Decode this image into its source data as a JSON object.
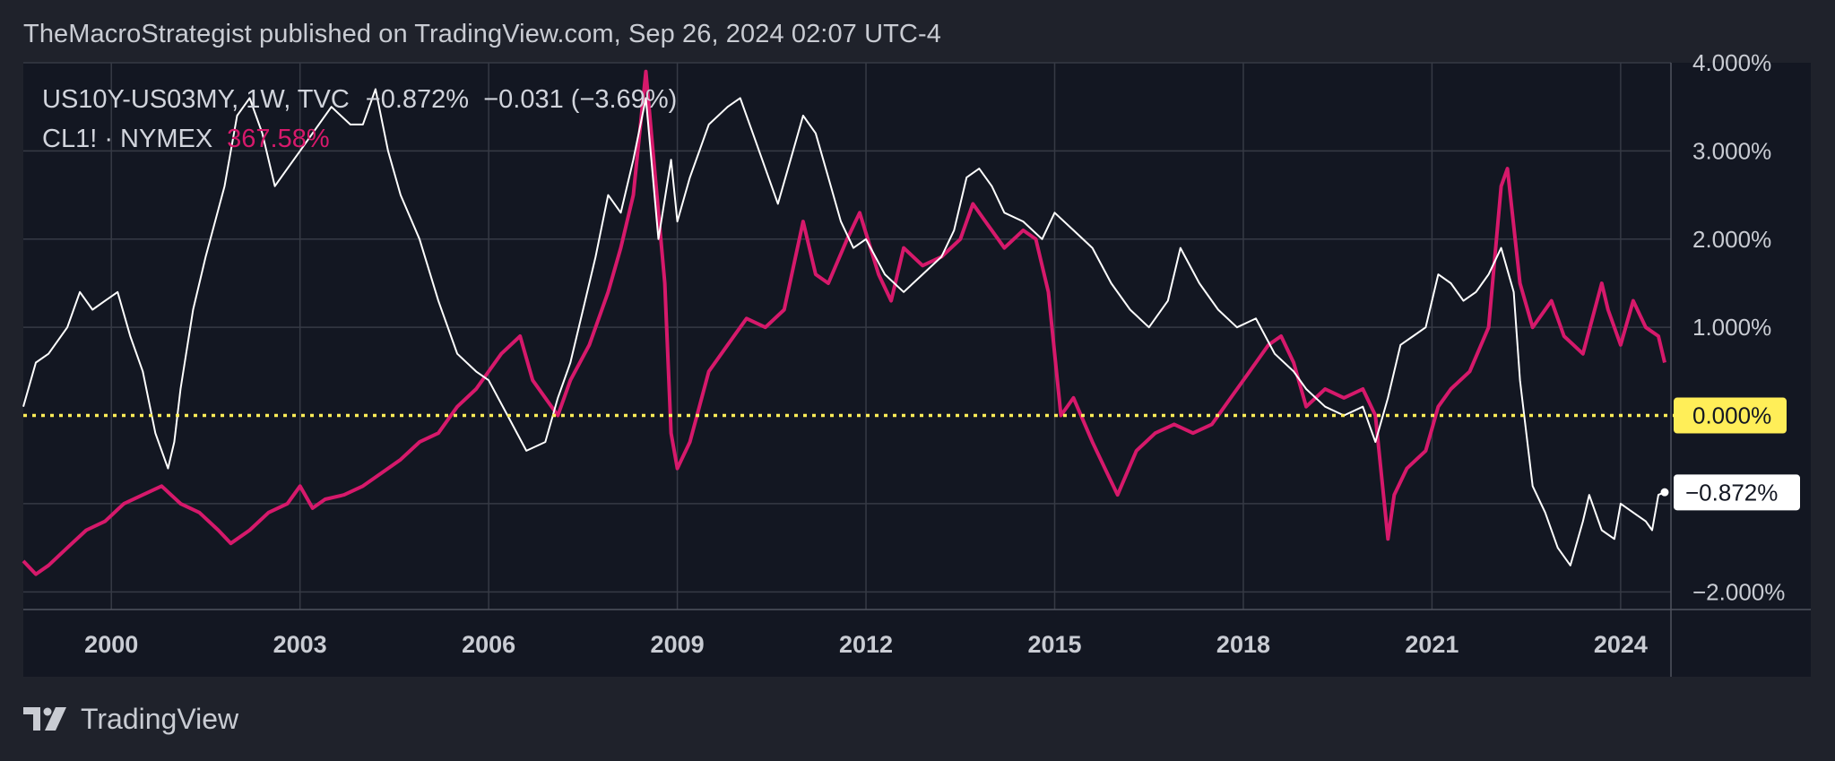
{
  "header": {
    "text": "TheMacroStrategist published on TradingView.com, Sep 26, 2024 02:07 UTC-4"
  },
  "legend": {
    "series1_label": "US10Y-US03MY, 1W, TVC",
    "series1_value": "−0.872%",
    "series1_change": "−0.031 (−3.69%)",
    "series2_label": "CL1! · NYMEX",
    "series2_value": "367.58%"
  },
  "footer": {
    "brand": "TradingView",
    "logo_icon": "tradingview-logo-icon"
  },
  "colors": {
    "background": "#1f222b",
    "plot_background": "#131722",
    "grid": "#363a45",
    "spread_line": "#ffffff",
    "oil_line": "#d6196b",
    "zero_line": "#ffee58"
  },
  "chart_data": {
    "type": "line",
    "x_range": [
      1998.6,
      2024.8
    ],
    "ylim": [
      -2.2,
      4.0
    ],
    "y_axis_position": "right",
    "y_ticks": [
      "4.000%",
      "3.000%",
      "2.000%",
      "1.000%",
      "0.000%",
      "−2.000%"
    ],
    "y_tick_values": [
      4,
      3,
      2,
      1,
      0,
      -2
    ],
    "x_ticks": [
      "2000",
      "2003",
      "2006",
      "2009",
      "2012",
      "2015",
      "2018",
      "2021",
      "2024"
    ],
    "x_tick_values": [
      2000,
      2003,
      2006,
      2009,
      2012,
      2015,
      2018,
      2021,
      2024
    ],
    "grid": true,
    "zero_line": {
      "value": 0,
      "label": "0.000%",
      "style": "dotted"
    },
    "last_value_label": "−0.872%",
    "last_value": -0.872,
    "series": [
      {
        "name": "US10Y-US03MY",
        "x": [
          1998.6,
          1998.8,
          1999.0,
          1999.3,
          1999.5,
          1999.7,
          1999.9,
          2000.1,
          2000.3,
          2000.5,
          2000.7,
          2000.9,
          2001.0,
          2001.1,
          2001.3,
          2001.5,
          2001.8,
          2002.0,
          2002.2,
          2002.4,
          2002.6,
          2002.8,
          2003.0,
          2003.2,
          2003.5,
          2003.8,
          2004.0,
          2004.2,
          2004.4,
          2004.6,
          2004.9,
          2005.2,
          2005.5,
          2005.8,
          2006.0,
          2006.3,
          2006.6,
          2006.9,
          2007.1,
          2007.3,
          2007.5,
          2007.7,
          2007.9,
          2008.1,
          2008.3,
          2008.5,
          2008.7,
          2008.9,
          2009.0,
          2009.2,
          2009.5,
          2009.8,
          2010.0,
          2010.2,
          2010.4,
          2010.6,
          2010.8,
          2011.0,
          2011.2,
          2011.4,
          2011.6,
          2011.8,
          2012.0,
          2012.3,
          2012.6,
          2012.9,
          2013.2,
          2013.4,
          2013.6,
          2013.8,
          2014.0,
          2014.2,
          2014.5,
          2014.8,
          2015.0,
          2015.3,
          2015.6,
          2015.9,
          2016.2,
          2016.5,
          2016.8,
          2017.0,
          2017.3,
          2017.6,
          2017.9,
          2018.2,
          2018.5,
          2018.8,
          2019.0,
          2019.3,
          2019.6,
          2019.9,
          2020.1,
          2020.3,
          2020.5,
          2020.7,
          2020.9,
          2021.1,
          2021.3,
          2021.5,
          2021.7,
          2021.9,
          2022.1,
          2022.3,
          2022.4,
          2022.6,
          2022.8,
          2023.0,
          2023.2,
          2023.4,
          2023.5,
          2023.7,
          2023.9,
          2024.0,
          2024.2,
          2024.4,
          2024.5,
          2024.6,
          2024.7
        ],
        "values": [
          0.1,
          0.6,
          0.7,
          1.0,
          1.4,
          1.2,
          1.3,
          1.4,
          0.9,
          0.5,
          -0.2,
          -0.6,
          -0.3,
          0.3,
          1.2,
          1.8,
          2.6,
          3.4,
          3.6,
          3.2,
          2.6,
          2.8,
          3.0,
          3.2,
          3.5,
          3.3,
          3.3,
          3.7,
          3.0,
          2.5,
          2.0,
          1.3,
          0.7,
          0.5,
          0.4,
          0.0,
          -0.4,
          -0.3,
          0.2,
          0.6,
          1.2,
          1.8,
          2.5,
          2.3,
          2.9,
          3.6,
          2.0,
          2.9,
          2.2,
          2.7,
          3.3,
          3.5,
          3.6,
          3.2,
          2.8,
          2.4,
          2.9,
          3.4,
          3.2,
          2.7,
          2.2,
          1.9,
          2.0,
          1.6,
          1.4,
          1.6,
          1.8,
          2.1,
          2.7,
          2.8,
          2.6,
          2.3,
          2.2,
          2.0,
          2.3,
          2.1,
          1.9,
          1.5,
          1.2,
          1.0,
          1.3,
          1.9,
          1.5,
          1.2,
          1.0,
          1.1,
          0.7,
          0.5,
          0.3,
          0.1,
          0.0,
          0.1,
          -0.3,
          0.2,
          0.8,
          0.9,
          1.0,
          1.6,
          1.5,
          1.3,
          1.4,
          1.6,
          1.9,
          1.4,
          0.4,
          -0.8,
          -1.1,
          -1.5,
          -1.7,
          -1.2,
          -0.9,
          -1.3,
          -1.4,
          -1.0,
          -1.1,
          -1.2,
          -1.3,
          -0.9,
          -0.87
        ]
      },
      {
        "name": "CL1! · NYMEX",
        "x": [
          1998.6,
          1998.8,
          1999.0,
          1999.3,
          1999.6,
          1999.9,
          2000.2,
          2000.5,
          2000.8,
          2001.1,
          2001.4,
          2001.7,
          2001.9,
          2002.2,
          2002.5,
          2002.8,
          2003.0,
          2003.2,
          2003.4,
          2003.7,
          2004.0,
          2004.3,
          2004.6,
          2004.9,
          2005.2,
          2005.5,
          2005.8,
          2006.0,
          2006.2,
          2006.5,
          2006.7,
          2006.9,
          2007.1,
          2007.3,
          2007.6,
          2007.9,
          2008.1,
          2008.3,
          2008.5,
          2008.6,
          2008.8,
          2008.9,
          2009.0,
          2009.2,
          2009.5,
          2009.8,
          2010.1,
          2010.4,
          2010.7,
          2011.0,
          2011.2,
          2011.4,
          2011.7,
          2011.9,
          2012.2,
          2012.4,
          2012.6,
          2012.9,
          2013.2,
          2013.5,
          2013.7,
          2013.9,
          2014.2,
          2014.5,
          2014.7,
          2014.9,
          2015.1,
          2015.3,
          2015.6,
          2015.8,
          2016.0,
          2016.3,
          2016.6,
          2016.9,
          2017.2,
          2017.5,
          2017.8,
          2018.1,
          2018.4,
          2018.6,
          2018.8,
          2019.0,
          2019.3,
          2019.6,
          2019.9,
          2020.1,
          2020.3,
          2020.4,
          2020.6,
          2020.9,
          2021.1,
          2021.3,
          2021.6,
          2021.9,
          2022.1,
          2022.2,
          2022.4,
          2022.6,
          2022.9,
          2023.1,
          2023.4,
          2023.7,
          2023.8,
          2024.0,
          2024.2,
          2024.4,
          2024.6,
          2024.7
        ],
        "values": [
          -1.65,
          -1.8,
          -1.7,
          -1.5,
          -1.3,
          -1.2,
          -1.0,
          -0.9,
          -0.8,
          -1.0,
          -1.1,
          -1.3,
          -1.45,
          -1.3,
          -1.1,
          -1.0,
          -0.8,
          -1.05,
          -0.95,
          -0.9,
          -0.8,
          -0.65,
          -0.5,
          -0.3,
          -0.2,
          0.1,
          0.3,
          0.5,
          0.7,
          0.9,
          0.4,
          0.2,
          0.0,
          0.4,
          0.8,
          1.4,
          1.9,
          2.5,
          3.9,
          3.1,
          1.5,
          -0.2,
          -0.6,
          -0.3,
          0.5,
          0.8,
          1.1,
          1.0,
          1.2,
          2.2,
          1.6,
          1.5,
          2.0,
          2.3,
          1.6,
          1.3,
          1.9,
          1.7,
          1.8,
          2.0,
          2.4,
          2.2,
          1.9,
          2.1,
          2.0,
          1.4,
          0.0,
          0.2,
          -0.3,
          -0.6,
          -0.9,
          -0.4,
          -0.2,
          -0.1,
          -0.2,
          -0.1,
          0.2,
          0.5,
          0.8,
          0.9,
          0.6,
          0.1,
          0.3,
          0.2,
          0.3,
          0.0,
          -1.4,
          -0.9,
          -0.6,
          -0.4,
          0.1,
          0.3,
          0.5,
          1.0,
          2.6,
          2.8,
          1.5,
          1.0,
          1.3,
          0.9,
          0.7,
          1.5,
          1.2,
          0.8,
          1.3,
          1.0,
          0.9,
          0.6
        ]
      }
    ]
  }
}
